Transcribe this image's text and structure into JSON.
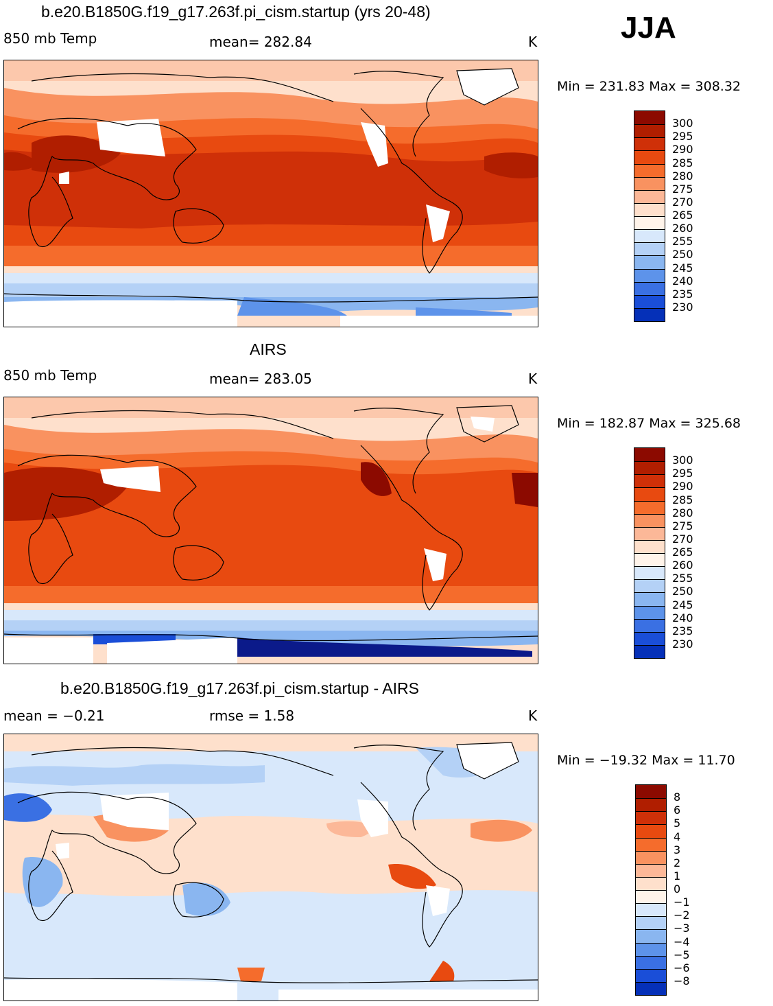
{
  "season": "JJA",
  "panels": [
    {
      "title": "b.e20.B1850G.f19_g17.263f.pi_cism.startup (yrs 20-48)",
      "variable": "850 mb Temp",
      "stat": "mean=  282.84",
      "units": "K",
      "min_max": "Min = 231.83 Max = 308.32",
      "colorbar": {
        "labels": [
          "300",
          "295",
          "290",
          "285",
          "280",
          "275",
          "270",
          "265",
          "260",
          "255",
          "250",
          "245",
          "240",
          "235",
          "230"
        ],
        "colors": [
          "#8c0a00",
          "#b01e00",
          "#cf3008",
          "#e84a10",
          "#f56c2c",
          "#f99260",
          "#fcb898",
          "#fee0cc",
          "#fff4ea",
          "#d8e8fb",
          "#b4d1f6",
          "#8ab6f0",
          "#5d93ea",
          "#3a70e3",
          "#1a4ed8",
          "#0530b8",
          "#0b1a8a"
        ]
      }
    },
    {
      "title": "AIRS",
      "variable": "850 mb Temp",
      "stat": "mean=  283.05",
      "units": "K",
      "min_max": "Min = 182.87 Max = 325.68",
      "colorbar": {
        "labels": [
          "300",
          "295",
          "290",
          "285",
          "280",
          "275",
          "270",
          "265",
          "260",
          "255",
          "250",
          "245",
          "240",
          "235",
          "230"
        ],
        "colors": [
          "#8c0a00",
          "#b01e00",
          "#cf3008",
          "#e84a10",
          "#f56c2c",
          "#f99260",
          "#fcb898",
          "#fee0cc",
          "#fff4ea",
          "#d8e8fb",
          "#b4d1f6",
          "#8ab6f0",
          "#5d93ea",
          "#3a70e3",
          "#1a4ed8",
          "#0530b8",
          "#0b1a8a"
        ]
      }
    },
    {
      "title": "b.e20.B1850G.f19_g17.263f.pi_cism.startup - AIRS",
      "variable": "mean =   −0.21",
      "stat": "rmse =    1.58",
      "units": "K",
      "min_max": "Min = −19.32 Max =  11.70",
      "colorbar": {
        "labels": [
          "8",
          "6",
          "5",
          "4",
          "3",
          "2",
          "1",
          "0",
          "−1",
          "−2",
          "−3",
          "−4",
          "−5",
          "−6",
          "−8"
        ],
        "colors": [
          "#8c0a00",
          "#b01e00",
          "#cf3008",
          "#e84a10",
          "#f56c2c",
          "#f99260",
          "#fcb898",
          "#fee0cc",
          "#fff4ea",
          "#d8e8fb",
          "#b4d1f6",
          "#8ab6f0",
          "#5d93ea",
          "#3a70e3",
          "#1a4ed8",
          "#0530b8",
          "#0b1a8a"
        ]
      }
    }
  ]
}
